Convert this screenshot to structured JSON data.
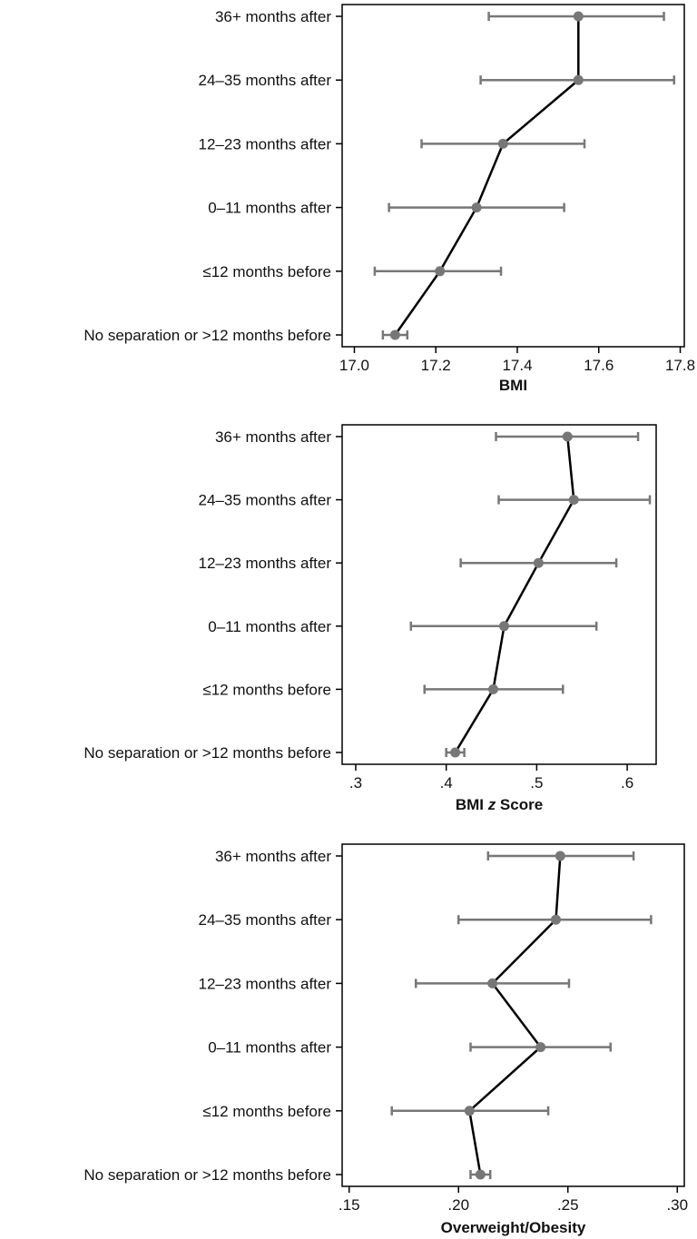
{
  "chart_data": [
    {
      "type": "scatter",
      "xlabel": "BMI",
      "categories": [
        "36+ months after",
        "24–35 months after",
        "12–23 months after",
        "0–11 months after",
        "≤12 months before",
        "No separation or >12 months before"
      ],
      "estimates": [
        17.55,
        17.55,
        17.365,
        17.3,
        17.21,
        17.1
      ],
      "ci_low": [
        17.33,
        17.31,
        17.165,
        17.085,
        17.05,
        17.07
      ],
      "ci_high": [
        17.76,
        17.785,
        17.565,
        17.515,
        17.36,
        17.13
      ],
      "xlim": [
        16.97,
        17.81
      ],
      "ticks": [
        17.0,
        17.2,
        17.4,
        17.6,
        17.8
      ],
      "tick_labels": [
        "17.0",
        "17.2",
        "17.4",
        "17.6",
        "17.8"
      ],
      "connected": true,
      "grid": false
    },
    {
      "type": "scatter",
      "xlabel": "BMI z Score",
      "xlabel_parts": [
        "BMI ",
        "z",
        " Score"
      ],
      "categories": [
        "36+ months after",
        "24–35 months after",
        "12–23 months after",
        "0–11 months after",
        "≤12 months before",
        "No separation or >12 months before"
      ],
      "estimates": [
        0.534,
        0.541,
        0.502,
        0.464,
        0.452,
        0.41
      ],
      "ci_low": [
        0.455,
        0.458,
        0.416,
        0.361,
        0.376,
        0.4
      ],
      "ci_high": [
        0.612,
        0.625,
        0.588,
        0.566,
        0.529,
        0.42
      ],
      "xlim": [
        0.285,
        0.632
      ],
      "ticks": [
        0.3,
        0.4,
        0.5,
        0.6
      ],
      "tick_labels": [
        ".3",
        ".4",
        ".5",
        ".6"
      ],
      "connected": true,
      "grid": false
    },
    {
      "type": "scatter",
      "xlabel": "Overweight/Obesity",
      "categories": [
        "36+ months after",
        "24–35 months after",
        "12–23 months after",
        "0–11 months after",
        "≤12 months before",
        "No separation or >12 months before"
      ],
      "estimates": [
        0.2465,
        0.2445,
        0.2155,
        0.2375,
        0.205,
        0.21
      ],
      "ci_low": [
        0.2135,
        0.2,
        0.1805,
        0.2055,
        0.1695,
        0.2055
      ],
      "ci_high": [
        0.28,
        0.288,
        0.2505,
        0.2695,
        0.241,
        0.2145
      ],
      "xlim": [
        0.1468,
        0.3032
      ],
      "ticks": [
        0.15,
        0.2,
        0.25,
        0.3
      ],
      "tick_labels": [
        ".15",
        ".20",
        ".25",
        ".30"
      ],
      "connected": true,
      "grid": false
    }
  ],
  "colors": {
    "marker": "#777777",
    "ci": "#777777",
    "line": "#000000",
    "axis": "#000000"
  }
}
